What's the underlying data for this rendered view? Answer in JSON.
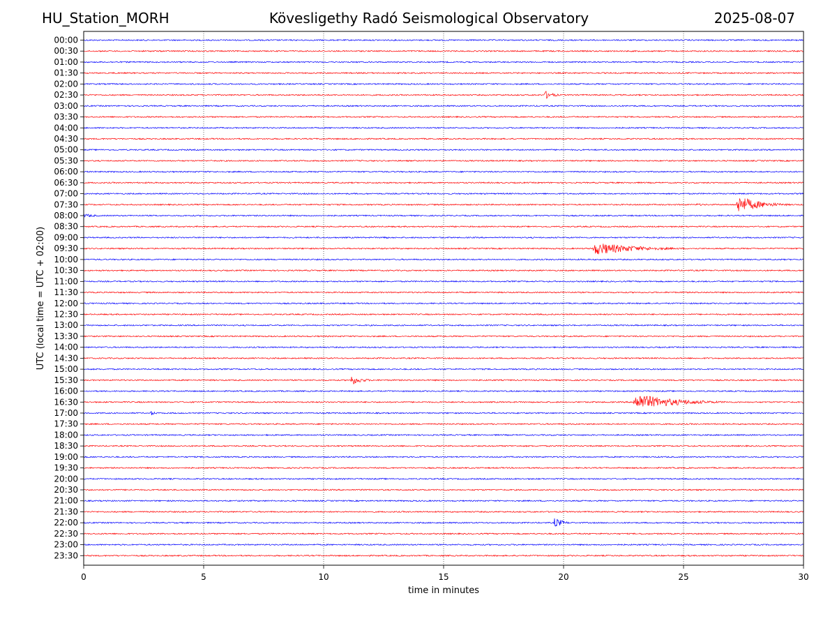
{
  "header": {
    "station": "HU_Station_MORH",
    "observatory": "Kövesligethy Radó Seismological Observatory",
    "date": "2025-08-07"
  },
  "chart_data": {
    "type": "line",
    "title": "Kövesligethy Radó Seismological Observatory",
    "xlabel": "time in minutes",
    "ylabel": "UTC (local time = UTC + 02:00)",
    "xlim": [
      0,
      30
    ],
    "x_ticks": [
      "0",
      "5",
      "10",
      "15",
      "20",
      "25",
      "30"
    ],
    "x_tick_values": [
      0,
      5,
      10,
      15,
      20,
      25,
      30
    ],
    "grid": "vertical dotted lines at x ticks",
    "colors": {
      "even_rows": "#0000ff",
      "odd_rows": "#ff0000",
      "frame": "#000000"
    },
    "rows": [
      "00:00",
      "00:30",
      "01:00",
      "01:30",
      "02:00",
      "02:30",
      "03:00",
      "03:30",
      "04:00",
      "04:30",
      "05:00",
      "05:30",
      "06:00",
      "06:30",
      "07:00",
      "07:30",
      "08:00",
      "08:30",
      "09:00",
      "09:30",
      "10:00",
      "10:30",
      "11:00",
      "11:30",
      "12:00",
      "12:30",
      "13:00",
      "13:30",
      "14:00",
      "14:30",
      "15:00",
      "15:30",
      "16:00",
      "16:30",
      "17:00",
      "17:30",
      "18:00",
      "18:30",
      "19:00",
      "19:30",
      "20:00",
      "20:30",
      "21:00",
      "21:30",
      "22:00",
      "22:30",
      "23:00",
      "23:30"
    ],
    "events": [
      {
        "row": "02:30",
        "start_min": 19.2,
        "end_min": 20.3,
        "amplitude": 7
      },
      {
        "row": "07:30",
        "start_min": 25.5,
        "end_min": 27.2,
        "amplitude": 2
      },
      {
        "row": "07:30",
        "start_min": 27.2,
        "end_min": 30.0,
        "amplitude": 14
      },
      {
        "row": "08:00",
        "start_min": 0.0,
        "end_min": 1.8,
        "amplitude": 3
      },
      {
        "row": "09:00",
        "start_min": 12.4,
        "end_min": 13.3,
        "amplitude": 3
      },
      {
        "row": "09:30",
        "start_min": 21.2,
        "end_min": 26.5,
        "amplitude": 10
      },
      {
        "row": "15:30",
        "start_min": 11.1,
        "end_min": 12.5,
        "amplitude": 8
      },
      {
        "row": "16:30",
        "start_min": 22.9,
        "end_min": 28.0,
        "amplitude": 13
      },
      {
        "row": "17:00",
        "start_min": 2.8,
        "end_min": 3.4,
        "amplitude": 4
      },
      {
        "row": "22:00",
        "start_min": 19.6,
        "end_min": 20.6,
        "amplitude": 9
      }
    ]
  }
}
